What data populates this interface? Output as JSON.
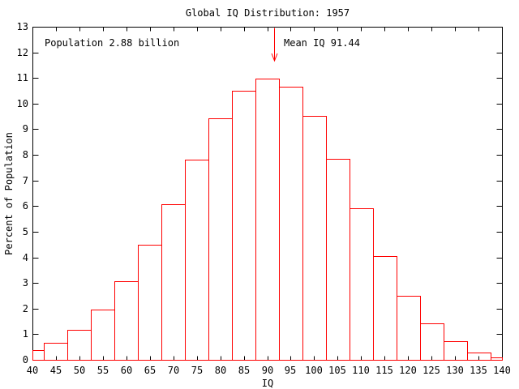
{
  "chart_data": {
    "type": "bar",
    "title": "Global IQ Distribution: 1957",
    "xlabel": "IQ",
    "ylabel": "Percent of Population",
    "xlim": [
      40,
      140
    ],
    "ylim": [
      0,
      13
    ],
    "bin_width": 5,
    "grid": false,
    "legend": "none",
    "x_ticks": [
      40,
      45,
      50,
      55,
      60,
      65,
      70,
      75,
      80,
      85,
      90,
      95,
      100,
      105,
      110,
      115,
      120,
      125,
      130,
      135,
      140
    ],
    "y_ticks": [
      0,
      1,
      2,
      3,
      4,
      5,
      6,
      7,
      8,
      9,
      10,
      11,
      12,
      13
    ],
    "categories": [
      40,
      45,
      50,
      55,
      60,
      65,
      70,
      75,
      80,
      85,
      90,
      95,
      100,
      105,
      110,
      115,
      120,
      125,
      130,
      135,
      140
    ],
    "values": [
      0.37,
      0.68,
      1.18,
      1.97,
      3.07,
      4.5,
      6.08,
      7.81,
      9.41,
      10.51,
      10.99,
      10.67,
      9.52,
      7.83,
      5.91,
      4.06,
      2.5,
      1.41,
      0.73,
      0.3,
      0.11
    ],
    "annotations": {
      "population": {
        "text": "Population 2.88 billion"
      },
      "mean": {
        "text": "Mean IQ 91.44",
        "arrow_x": 91.44
      }
    },
    "colors": {
      "box": "#ff0000",
      "arrow": "#ff0000",
      "axis": "#000000",
      "text": "#000000",
      "background": "#ffffff"
    }
  }
}
